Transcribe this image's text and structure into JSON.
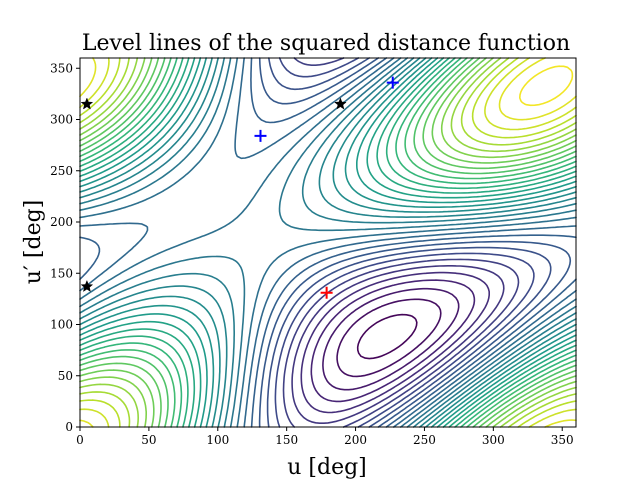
{
  "chart_data": {
    "type": "contour",
    "title": "Level lines of the squared distance function",
    "xlabel": "u [deg]",
    "ylabel": "u′ [deg]",
    "xlim": [
      0,
      360
    ],
    "ylim": [
      0,
      360
    ],
    "xticks": [
      0,
      50,
      100,
      150,
      200,
      250,
      300,
      350
    ],
    "yticks": [
      0,
      50,
      100,
      150,
      200,
      250,
      300,
      350
    ],
    "grid": false,
    "colormap": "viridis",
    "markers": [
      {
        "kind": "plus",
        "color": "#ff0000",
        "x": 179,
        "y": 131
      },
      {
        "kind": "plus",
        "color": "#0000ff",
        "x": 131,
        "y": 284
      },
      {
        "kind": "plus",
        "color": "#0000ff",
        "x": 227,
        "y": 336
      },
      {
        "kind": "star",
        "color": "#000000",
        "x": 5,
        "y": 315
      },
      {
        "kind": "star",
        "color": "#000000",
        "x": 189,
        "y": 315
      },
      {
        "kind": "star",
        "color": "#000000",
        "x": 5,
        "y": 137
      }
    ]
  }
}
